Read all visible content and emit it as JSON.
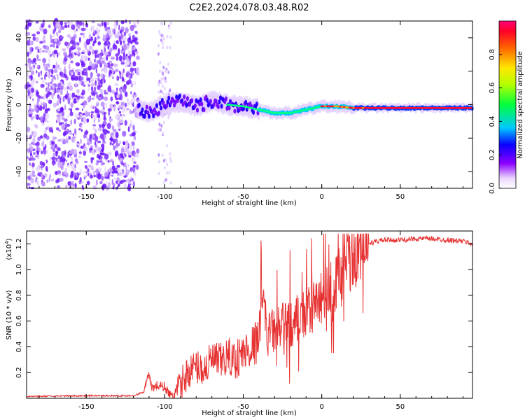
{
  "title": "C2E2.2024.078.03.48.R02",
  "chart_data": [
    {
      "type": "heatmap",
      "xlabel": "Height of straight line (km)",
      "ylabel": "Frequency (Hz)",
      "xlim": [
        -188,
        96
      ],
      "ylim": [
        -50,
        50
      ],
      "xticks": [
        -150,
        -100,
        -50,
        0,
        50
      ],
      "yticks": [
        -40,
        -20,
        0,
        20,
        40
      ],
      "ridge": {
        "x": [
          -117,
          -110,
          -100,
          -90,
          -80,
          -70,
          -60,
          -50,
          -40,
          -30,
          -20,
          -10,
          0,
          10,
          20,
          30,
          50,
          70,
          96
        ],
        "frequency": [
          -3,
          -5,
          0,
          2,
          -1,
          2,
          0,
          -1,
          -3,
          -5,
          -5,
          -3,
          -1,
          -1,
          -2,
          -2,
          -2,
          -2,
          -2
        ]
      },
      "colorbar": {
        "label": "Normalized spectral amplitude",
        "range": [
          0,
          1
        ],
        "ticks": [
          0.0,
          0.2,
          0.4,
          0.6,
          0.8
        ]
      }
    },
    {
      "type": "line",
      "xlabel": "Height of straight line (km)",
      "ylabel": "SNR (10 * v/v)",
      "multiplier": "(x10",
      "multiplier_exp": "4",
      "multiplier_end": ")",
      "xlim": [
        -188,
        96
      ],
      "ylim": [
        0,
        1.3
      ],
      "xticks": [
        -150,
        -100,
        -50,
        0,
        50
      ],
      "yticks": [
        0.2,
        0.4,
        0.6,
        0.8,
        1.0,
        1.2
      ],
      "series": [
        {
          "color": "#e63232",
          "x": [
            -188,
            -150,
            -120,
            -113,
            -111,
            -108,
            -105,
            -100,
            -96,
            -92,
            -88,
            -85,
            -80,
            -75,
            -70,
            -65,
            -60,
            -55,
            -50,
            -45,
            -40,
            -38,
            -35,
            -30,
            -25,
            -20,
            -15,
            -10,
            -5,
            0,
            5,
            8,
            10,
            13,
            15,
            18,
            20,
            25,
            30,
            35,
            40,
            50,
            60,
            70,
            80,
            90,
            96
          ],
          "y": [
            0.015,
            0.02,
            0.02,
            0.05,
            0.2,
            0.08,
            0.1,
            0.09,
            0.01,
            0.05,
            0.15,
            0.2,
            0.25,
            0.22,
            0.3,
            0.28,
            0.32,
            0.3,
            0.35,
            0.4,
            0.45,
            0.9,
            0.5,
            0.52,
            0.55,
            0.58,
            0.62,
            0.65,
            0.7,
            0.8,
            0.82,
            0.75,
            1.0,
            0.9,
            1.15,
            1.05,
            1.1,
            1.15,
            1.2,
            1.22,
            1.23,
            1.23,
            1.24,
            1.24,
            1.23,
            1.22,
            1.2
          ]
        }
      ]
    }
  ]
}
